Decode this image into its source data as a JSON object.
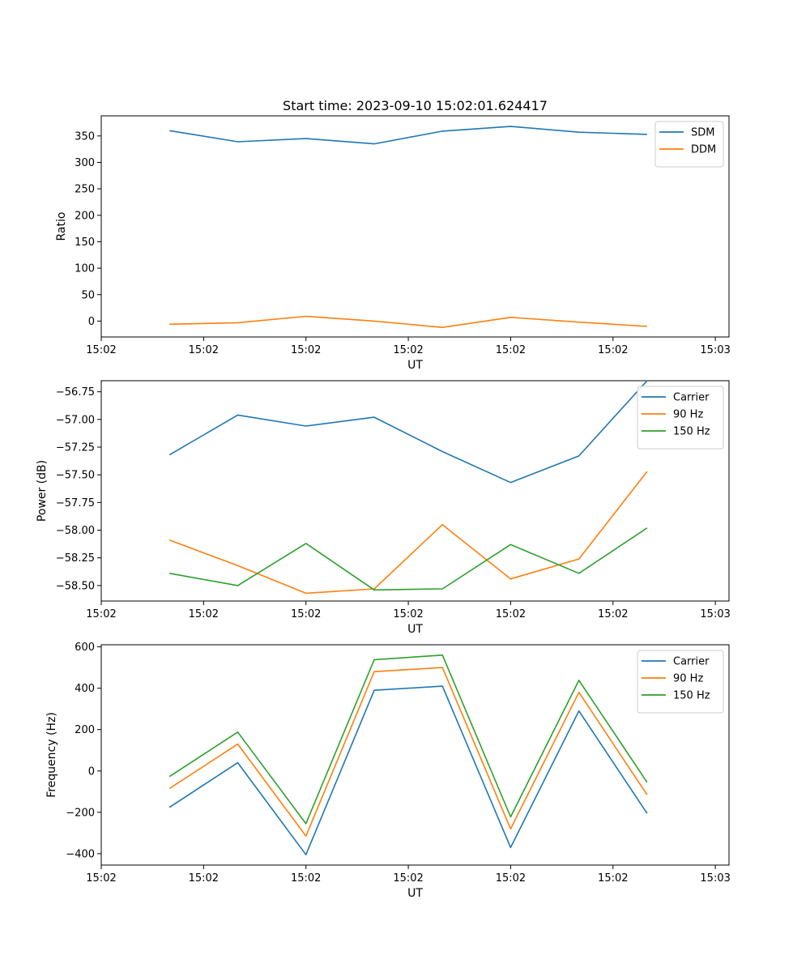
{
  "figure": {
    "title": "Start time: 2023-09-10 15:02:01.624417"
  },
  "chart_data": [
    {
      "type": "line",
      "title": "Start time: 2023-09-10 15:02:01.624417",
      "xlabel": "UT",
      "ylabel": "Ratio",
      "xlim": [
        0,
        9.2
      ],
      "ylim": [
        -30,
        388
      ],
      "x": [
        1,
        2,
        3,
        4,
        5,
        6,
        7,
        8
      ],
      "x_ticks": [
        {
          "value": 0,
          "label": "15:02"
        },
        {
          "value": 1.5,
          "label": "15:02"
        },
        {
          "value": 3,
          "label": "15:02"
        },
        {
          "value": 4.5,
          "label": "15:02"
        },
        {
          "value": 6,
          "label": "15:02"
        },
        {
          "value": 7.5,
          "label": "15:02"
        },
        {
          "value": 9,
          "label": "15:03"
        }
      ],
      "y_ticks": [
        {
          "value": 0,
          "label": "0"
        },
        {
          "value": 50,
          "label": "50"
        },
        {
          "value": 100,
          "label": "100"
        },
        {
          "value": 150,
          "label": "150"
        },
        {
          "value": 200,
          "label": "200"
        },
        {
          "value": 250,
          "label": "250"
        },
        {
          "value": 300,
          "label": "300"
        },
        {
          "value": 350,
          "label": "350"
        }
      ],
      "legend_position": "top-right",
      "series": [
        {
          "name": "SDM",
          "color": "#1f77b4",
          "values": [
            360,
            339,
            345,
            335,
            359,
            368,
            357,
            353
          ]
        },
        {
          "name": "DDM",
          "color": "#ff7f0e",
          "values": [
            -6,
            -3,
            9,
            0,
            -12,
            7,
            -2,
            -10
          ]
        }
      ]
    },
    {
      "type": "line",
      "title": "",
      "xlabel": "UT",
      "ylabel": "Power (dB)",
      "xlim": [
        0,
        9.2
      ],
      "ylim": [
        -58.64,
        -56.65
      ],
      "x": [
        1,
        2,
        3,
        4,
        5,
        6,
        7,
        8
      ],
      "x_ticks": [
        {
          "value": 0,
          "label": "15:02"
        },
        {
          "value": 1.5,
          "label": "15:02"
        },
        {
          "value": 3,
          "label": "15:02"
        },
        {
          "value": 4.5,
          "label": "15:02"
        },
        {
          "value": 6,
          "label": "15:02"
        },
        {
          "value": 7.5,
          "label": "15:02"
        },
        {
          "value": 9,
          "label": "15:03"
        }
      ],
      "y_ticks": [
        {
          "value": -58.5,
          "label": "−58.50"
        },
        {
          "value": -58.25,
          "label": "−58.25"
        },
        {
          "value": -58.0,
          "label": "−58.00"
        },
        {
          "value": -57.75,
          "label": "−57.75"
        },
        {
          "value": -57.5,
          "label": "−57.50"
        },
        {
          "value": -57.25,
          "label": "−57.25"
        },
        {
          "value": -57.0,
          "label": "−57.00"
        },
        {
          "value": -56.75,
          "label": "−56.75"
        }
      ],
      "legend_position": "top-right",
      "series": [
        {
          "name": "Carrier",
          "color": "#1f77b4",
          "values": [
            -57.32,
            -56.96,
            -57.06,
            -56.98,
            -57.29,
            -57.57,
            -57.33,
            -56.65
          ]
        },
        {
          "name": "90 Hz",
          "color": "#ff7f0e",
          "values": [
            -58.09,
            -58.32,
            -58.57,
            -58.53,
            -57.95,
            -58.44,
            -58.26,
            -57.47
          ]
        },
        {
          "name": "150 Hz",
          "color": "#2ca02c",
          "values": [
            -58.39,
            -58.5,
            -58.12,
            -58.54,
            -58.53,
            -58.13,
            -58.39,
            -57.98
          ]
        }
      ]
    },
    {
      "type": "line",
      "title": "",
      "xlabel": "UT",
      "ylabel": "Frequency (Hz)",
      "xlim": [
        0,
        9.2
      ],
      "ylim": [
        -455,
        610
      ],
      "x": [
        1,
        2,
        3,
        4,
        5,
        6,
        7,
        8
      ],
      "x_ticks": [
        {
          "value": 0,
          "label": "15:02"
        },
        {
          "value": 1.5,
          "label": "15:02"
        },
        {
          "value": 3,
          "label": "15:02"
        },
        {
          "value": 4.5,
          "label": "15:02"
        },
        {
          "value": 6,
          "label": "15:02"
        },
        {
          "value": 7.5,
          "label": "15:02"
        },
        {
          "value": 9,
          "label": "15:03"
        }
      ],
      "y_ticks": [
        {
          "value": -400,
          "label": "−400"
        },
        {
          "value": -200,
          "label": "−200"
        },
        {
          "value": 0,
          "label": "0"
        },
        {
          "value": 200,
          "label": "200"
        },
        {
          "value": 400,
          "label": "400"
        },
        {
          "value": 600,
          "label": "600"
        }
      ],
      "legend_position": "top-right",
      "series": [
        {
          "name": "Carrier",
          "color": "#1f77b4",
          "values": [
            -176,
            40,
            -405,
            390,
            410,
            -370,
            290,
            -205
          ]
        },
        {
          "name": "90 Hz",
          "color": "#ff7f0e",
          "values": [
            -85,
            130,
            -315,
            480,
            500,
            -280,
            380,
            -115
          ]
        },
        {
          "name": "150 Hz",
          "color": "#2ca02c",
          "values": [
            -27,
            188,
            -255,
            538,
            560,
            -222,
            438,
            -55
          ]
        }
      ]
    }
  ]
}
